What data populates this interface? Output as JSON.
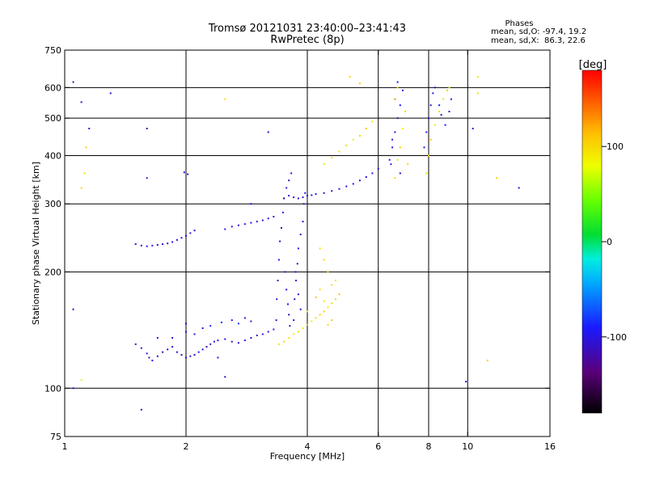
{
  "chart_data": {
    "type": "scatter",
    "title": "Tromsø 20121031 23:40:00–23:41:43",
    "subtitle": "RwPretec (8p)",
    "xlabel": "Frequency [MHz]",
    "ylabel": "Stationary phase Virtual Height [km]",
    "x_scale": "log",
    "y_scale": "log",
    "xlim": [
      1,
      16
    ],
    "ylim": [
      75,
      750
    ],
    "x_ticks": [
      1,
      2,
      4,
      6,
      8,
      10,
      16
    ],
    "x_tick_labels": [
      "1",
      "2",
      "4",
      "6",
      "8",
      "10",
      "16"
    ],
    "y_ticks": [
      75,
      100,
      200,
      300,
      400,
      500,
      600,
      750
    ],
    "y_tick_labels": [
      "75",
      "100",
      "200",
      "300",
      "400",
      "500",
      "600",
      "750"
    ],
    "x_grid": [
      2,
      4,
      6,
      8,
      10
    ],
    "y_grid": [
      100,
      200,
      300,
      400,
      500,
      600
    ],
    "grid": true,
    "stats": {
      "heading": "Phases",
      "line1": "mean, sd,O: -97.4, 19.2",
      "line2": "mean, sd,X:  86.3, 22.6"
    },
    "colorbar": {
      "title": "[deg]",
      "min": -180,
      "max": 180,
      "ticks": [
        -100,
        0,
        100
      ],
      "tick_labels": [
        "-100",
        "0",
        "100"
      ]
    },
    "series": [
      {
        "mode": "O",
        "points": [
          [
            1.5,
            130,
            -115
          ],
          [
            1.55,
            127,
            -100
          ],
          [
            1.6,
            123,
            -95
          ],
          [
            1.62,
            120,
            -110
          ],
          [
            1.65,
            118,
            -90
          ],
          [
            1.7,
            121,
            -105
          ],
          [
            1.75,
            124,
            -120
          ],
          [
            1.8,
            126,
            -100
          ],
          [
            1.85,
            128,
            -95
          ],
          [
            1.9,
            124,
            -110
          ],
          [
            1.95,
            122,
            -115
          ],
          [
            2.0,
            120,
            -100
          ],
          [
            2.05,
            121,
            -105
          ],
          [
            2.1,
            122,
            -110
          ],
          [
            2.15,
            124,
            -95
          ],
          [
            2.2,
            126,
            -100
          ],
          [
            2.25,
            128,
            -120
          ],
          [
            2.3,
            130,
            -105
          ],
          [
            2.35,
            132,
            -110
          ],
          [
            2.4,
            133,
            -100
          ],
          [
            2.5,
            134,
            -95
          ],
          [
            2.6,
            132,
            -115
          ],
          [
            2.7,
            131,
            -105
          ],
          [
            2.8,
            133,
            -100
          ],
          [
            2.9,
            135,
            -110
          ],
          [
            3.0,
            137,
            -120
          ],
          [
            3.1,
            138,
            -105
          ],
          [
            3.2,
            140,
            -100
          ],
          [
            3.3,
            142,
            -95
          ],
          [
            1.85,
            135,
            -100
          ],
          [
            2.0,
            140,
            -95
          ],
          [
            2.1,
            138,
            -110
          ],
          [
            2.2,
            143,
            -100
          ],
          [
            2.3,
            145,
            -85
          ],
          [
            2.45,
            148,
            -90
          ],
          [
            2.6,
            150,
            -100
          ],
          [
            2.7,
            147,
            -80
          ],
          [
            2.8,
            152,
            -95
          ],
          [
            2.9,
            149,
            -105
          ],
          [
            2.0,
            147,
            -110
          ],
          [
            1.7,
            135,
            -90
          ],
          [
            1.5,
            236,
            -105
          ],
          [
            1.55,
            234,
            -110
          ],
          [
            1.6,
            233,
            -100
          ],
          [
            1.65,
            234,
            -95
          ],
          [
            1.7,
            235,
            -105
          ],
          [
            1.75,
            236,
            -110
          ],
          [
            1.8,
            237,
            -100
          ],
          [
            1.85,
            239,
            -95
          ],
          [
            1.9,
            242,
            -105
          ],
          [
            1.95,
            245,
            -110
          ],
          [
            2.0,
            248,
            -100
          ],
          [
            2.05,
            252,
            -105
          ],
          [
            2.1,
            256,
            -95
          ],
          [
            1.98,
            362,
            -110
          ],
          [
            2.02,
            358,
            -100
          ],
          [
            2.5,
            258,
            -100
          ],
          [
            2.6,
            262,
            -105
          ],
          [
            2.7,
            264,
            -110
          ],
          [
            2.8,
            266,
            -95
          ],
          [
            2.9,
            268,
            -100
          ],
          [
            3.0,
            270,
            -110
          ],
          [
            3.1,
            272,
            -105
          ],
          [
            3.2,
            275,
            -95
          ],
          [
            3.3,
            278,
            -100
          ],
          [
            3.35,
            150,
            -100
          ],
          [
            3.36,
            170,
            -95
          ],
          [
            3.38,
            190,
            -110
          ],
          [
            3.4,
            215,
            -100
          ],
          [
            3.42,
            240,
            -105
          ],
          [
            3.45,
            260,
            -110
          ],
          [
            3.48,
            285,
            -95
          ],
          [
            3.5,
            310,
            -100
          ],
          [
            3.55,
            330,
            -105
          ],
          [
            3.6,
            345,
            -110
          ],
          [
            3.65,
            360,
            -100
          ],
          [
            3.52,
            200,
            -105
          ],
          [
            3.55,
            180,
            -95
          ],
          [
            3.58,
            165,
            -100
          ],
          [
            3.6,
            155,
            -110
          ],
          [
            3.62,
            145,
            -105
          ],
          [
            3.7,
            150,
            -120
          ],
          [
            3.72,
            170,
            -110
          ],
          [
            3.75,
            190,
            -100
          ],
          [
            3.78,
            210,
            -105
          ],
          [
            3.8,
            230,
            -95
          ],
          [
            3.85,
            250,
            -110
          ],
          [
            3.9,
            270,
            -100
          ],
          [
            3.92,
            300,
            -105
          ],
          [
            3.95,
            320,
            -95
          ],
          [
            3.85,
            160,
            -110
          ],
          [
            3.8,
            175,
            -100
          ],
          [
            3.74,
            200,
            -90
          ],
          [
            3.5,
            310,
            -100
          ],
          [
            3.6,
            315,
            -105
          ],
          [
            3.7,
            312,
            -95
          ],
          [
            3.8,
            310,
            -110
          ],
          [
            3.9,
            312,
            -100
          ],
          [
            4.0,
            315,
            -105
          ],
          [
            4.1,
            316,
            -95
          ],
          [
            4.2,
            318,
            -100
          ],
          [
            4.4,
            320,
            -110
          ],
          [
            4.6,
            324,
            -100
          ],
          [
            4.8,
            328,
            -105
          ],
          [
            5.0,
            333,
            -95
          ],
          [
            5.2,
            338,
            -100
          ],
          [
            5.4,
            345,
            -110
          ],
          [
            5.6,
            352,
            -105
          ],
          [
            5.8,
            360,
            -95
          ],
          [
            6.0,
            370,
            -100
          ],
          [
            6.4,
            390,
            -95
          ],
          [
            6.5,
            420,
            -100
          ],
          [
            6.6,
            460,
            -105
          ],
          [
            6.7,
            500,
            -110
          ],
          [
            6.8,
            540,
            -95
          ],
          [
            6.9,
            590,
            -100
          ],
          [
            6.7,
            620,
            -105
          ],
          [
            6.6,
            560,
            -110
          ],
          [
            6.5,
            440,
            -95
          ],
          [
            6.45,
            380,
            -100
          ],
          [
            6.8,
            360,
            -105
          ],
          [
            7.8,
            420,
            -100
          ],
          [
            7.9,
            460,
            -95
          ],
          [
            8.0,
            500,
            -105
          ],
          [
            8.1,
            540,
            -110
          ],
          [
            8.2,
            580,
            -100
          ],
          [
            8.3,
            600,
            -95
          ],
          [
            8.5,
            540,
            -100
          ],
          [
            8.6,
            510,
            -105
          ],
          [
            8.8,
            480,
            -95
          ],
          [
            9.0,
            520,
            -110
          ],
          [
            9.1,
            560,
            -100
          ],
          [
            1.05,
            620,
            -110
          ],
          [
            1.1,
            550,
            -100
          ],
          [
            1.3,
            580,
            -105
          ],
          [
            1.15,
            470,
            -95
          ],
          [
            1.6,
            470,
            -110
          ],
          [
            1.6,
            350,
            -100
          ],
          [
            2.4,
            120,
            -95
          ],
          [
            2.5,
            107,
            -110
          ],
          [
            1.05,
            100,
            -100
          ],
          [
            1.55,
            88,
            -105
          ],
          [
            2.9,
            300,
            -95
          ],
          [
            3.2,
            460,
            -110
          ],
          [
            10.3,
            470,
            -100
          ],
          [
            13.4,
            330,
            -105
          ],
          [
            9.9,
            104,
            -95
          ],
          [
            1.05,
            160,
            -110
          ]
        ]
      },
      {
        "mode": "X",
        "points": [
          [
            3.4,
            130,
            95
          ],
          [
            3.5,
            132,
            100
          ],
          [
            3.6,
            135,
            90
          ],
          [
            3.7,
            138,
            85
          ],
          [
            3.8,
            140,
            100
          ],
          [
            3.9,
            143,
            95
          ],
          [
            4.0,
            146,
            110
          ],
          [
            4.1,
            149,
            90
          ],
          [
            4.2,
            152,
            95
          ],
          [
            4.3,
            155,
            100
          ],
          [
            4.4,
            158,
            105
          ],
          [
            4.5,
            162,
            90
          ],
          [
            4.6,
            166,
            95
          ],
          [
            4.7,
            170,
            100
          ],
          [
            4.8,
            175,
            110
          ],
          [
            4.6,
            185,
            95
          ],
          [
            4.7,
            190,
            90
          ],
          [
            4.5,
            200,
            105
          ],
          [
            4.4,
            215,
            100
          ],
          [
            4.3,
            230,
            95
          ],
          [
            4.0,
            158,
            90
          ],
          [
            4.2,
            172,
            110
          ],
          [
            4.3,
            180,
            95
          ],
          [
            4.5,
            146,
            100
          ],
          [
            4.6,
            150,
            105
          ],
          [
            4.4,
            168,
            85
          ],
          [
            4.4,
            380,
            90
          ],
          [
            4.6,
            395,
            100
          ],
          [
            4.8,
            410,
            95
          ],
          [
            5.0,
            425,
            105
          ],
          [
            5.2,
            440,
            90
          ],
          [
            5.4,
            450,
            100
          ],
          [
            5.6,
            470,
            110
          ],
          [
            5.8,
            490,
            95
          ],
          [
            6.6,
            350,
            100
          ],
          [
            6.7,
            390,
            95
          ],
          [
            6.8,
            420,
            105
          ],
          [
            6.9,
            470,
            90
          ],
          [
            7.0,
            520,
            100
          ],
          [
            6.6,
            560,
            110
          ],
          [
            6.7,
            600,
            95
          ],
          [
            7.1,
            380,
            100
          ],
          [
            7.9,
            360,
            95
          ],
          [
            8.0,
            400,
            100
          ],
          [
            8.1,
            440,
            105
          ],
          [
            8.3,
            480,
            90
          ],
          [
            8.5,
            520,
            100
          ],
          [
            8.7,
            560,
            95
          ],
          [
            8.9,
            590,
            110
          ],
          [
            9.0,
            600,
            90
          ],
          [
            1.12,
            360,
            95
          ],
          [
            1.1,
            330,
            100
          ],
          [
            1.13,
            420,
            105
          ],
          [
            1.1,
            105,
            90
          ],
          [
            2.5,
            560,
            95
          ],
          [
            5.1,
            640,
            100
          ],
          [
            5.4,
            615,
            105
          ],
          [
            10.6,
            640,
            90
          ],
          [
            10.6,
            580,
            95
          ],
          [
            11.2,
            118,
            100
          ],
          [
            11.8,
            350,
            105
          ]
        ]
      }
    ]
  }
}
